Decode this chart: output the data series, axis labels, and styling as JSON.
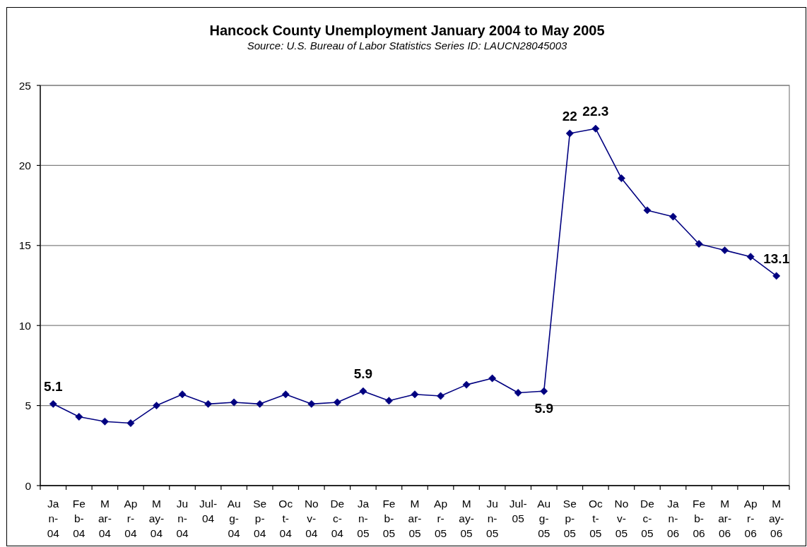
{
  "chart_data": {
    "type": "line",
    "title": "Hancock County Unemployment January 2004 to May 2005",
    "subtitle": "Source: U.S. Bureau of Labor Statistics Series ID: LAUCN28045003",
    "categories": [
      "Jan-04",
      "Feb-04",
      "Mar-04",
      "Apr-04",
      "May-04",
      "Jun-04",
      "Jul-04",
      "Aug-04",
      "Sep-04",
      "Oct-04",
      "Nov-04",
      "Dec-04",
      "Jan-05",
      "Feb-05",
      "Mar-05",
      "Apr-05",
      "May-05",
      "Jun-05",
      "Jul-05",
      "Aug-05",
      "Sep-05",
      "Oct-05",
      "Nov-05",
      "Dec-05",
      "Jan-06",
      "Feb-06",
      "Mar-06",
      "Apr-06",
      "May-06"
    ],
    "series": [
      {
        "color": "#000080",
        "values": [
          5.1,
          4.3,
          4.0,
          3.9,
          5.0,
          5.7,
          5.1,
          5.2,
          5.1,
          5.7,
          5.1,
          5.2,
          5.9,
          5.3,
          5.7,
          5.6,
          6.3,
          6.7,
          5.8,
          5.9,
          22,
          22.3,
          19.2,
          17.2,
          16.8,
          15.1,
          14.7,
          14.3,
          13.1
        ],
        "value_labels": [
          "5.1",
          null,
          null,
          null,
          null,
          null,
          null,
          null,
          null,
          null,
          null,
          null,
          "5.9",
          null,
          null,
          null,
          null,
          null,
          null,
          "5.9",
          "22",
          "22.3",
          null,
          null,
          null,
          null,
          null,
          null,
          "13.1"
        ]
      }
    ],
    "ylim": [
      0,
      25
    ],
    "yticks": [
      0,
      5,
      10,
      15,
      20,
      25
    ],
    "grid": "y",
    "marker": "diamond",
    "line_style": "solid"
  }
}
